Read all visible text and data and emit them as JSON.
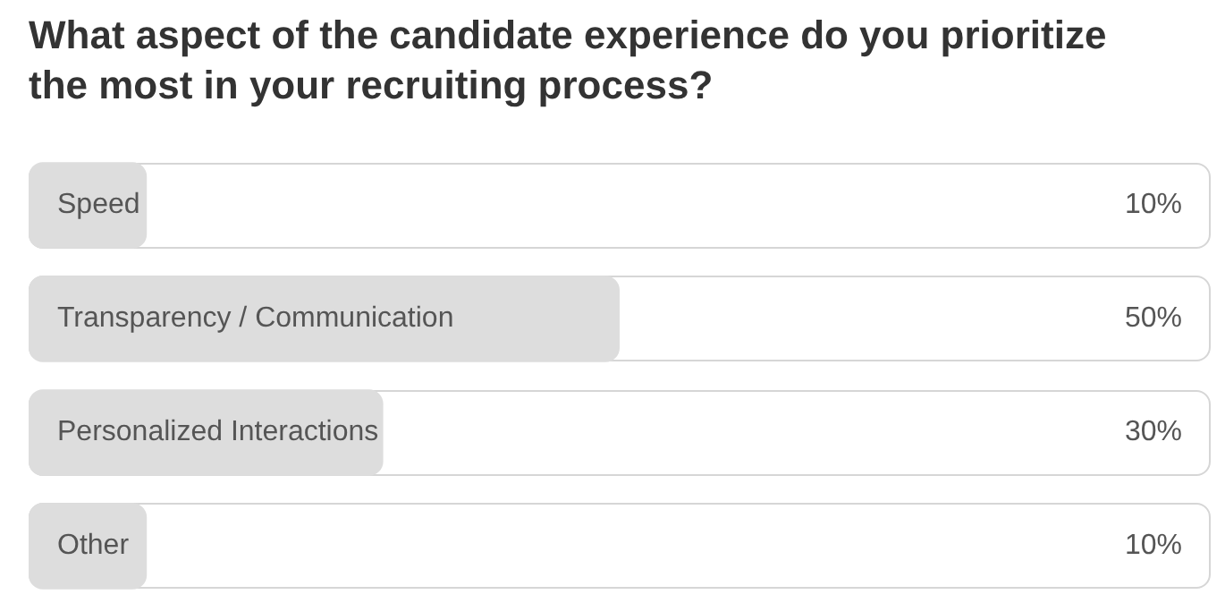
{
  "chart_data": {
    "type": "bar",
    "title": "What aspect of the candidate experience do you prioritize the most in your recruiting process?",
    "orientation": "horizontal",
    "categories": [
      "Speed",
      "Transparency / Communication",
      "Personalized Interactions",
      "Other"
    ],
    "values": [
      10,
      50,
      30,
      10
    ],
    "color": "#dddddd",
    "value_labels": [
      "10%",
      "50%",
      "30%",
      "10%"
    ],
    "xlim": [
      0,
      100
    ]
  }
}
